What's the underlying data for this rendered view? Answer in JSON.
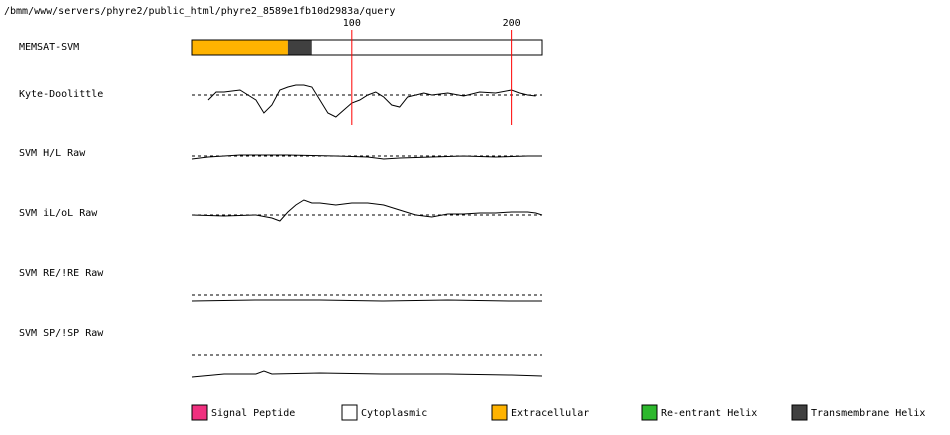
{
  "path": "/bmm/www/servers/phyre2/public_html/phyre2_8589e1fb10d2983a/query",
  "chart_data": {
    "type": "track",
    "xlim": [
      0,
      219
    ],
    "xticks": [
      100,
      200
    ],
    "tick_color": "#ff0000",
    "topology": {
      "name": "MEMSAT-SVM",
      "segments": [
        {
          "start": 0,
          "end": 60,
          "color": "#ffb300"
        },
        {
          "start": 60,
          "end": 75,
          "color": "#404040"
        },
        {
          "start": 75,
          "end": 219,
          "color": "#ffffff"
        }
      ]
    },
    "tracks": [
      {
        "name": "Kyte-Doolittle",
        "ylim": [
          -30,
          30
        ],
        "x": [
          10,
          15,
          20,
          30,
          40,
          45,
          50,
          55,
          60,
          65,
          70,
          75,
          80,
          85,
          90,
          95,
          100,
          105,
          110,
          115,
          120,
          125,
          130,
          135,
          140,
          145,
          150,
          160,
          170,
          180,
          190,
          200,
          205,
          210,
          215
        ],
        "values": [
          -5,
          3,
          3,
          5,
          -5,
          -18,
          -10,
          5,
          8,
          10,
          10,
          8,
          -5,
          -18,
          -22,
          -15,
          -8,
          -5,
          0,
          3,
          -2,
          -10,
          -12,
          -2,
          0,
          2,
          0,
          2,
          -1,
          3,
          2,
          5,
          2,
          0,
          -1
        ]
      },
      {
        "name": "SVM H/L Raw",
        "ylim": [
          -30,
          30
        ],
        "x": [
          0,
          10,
          30,
          60,
          90,
          110,
          120,
          130,
          150,
          170,
          190,
          210,
          219
        ],
        "values": [
          -3,
          -1,
          1,
          1,
          0,
          -1,
          -3,
          -2,
          -1,
          0,
          -1,
          0,
          0
        ]
      },
      {
        "name": "SVM iL/oL Raw",
        "ylim": [
          -30,
          30
        ],
        "x": [
          0,
          20,
          40,
          50,
          55,
          60,
          65,
          70,
          75,
          80,
          90,
          100,
          110,
          120,
          130,
          140,
          150,
          160,
          170,
          180,
          190,
          200,
          210,
          215,
          219
        ],
        "values": [
          0,
          -1,
          0,
          -3,
          -6,
          3,
          10,
          15,
          12,
          12,
          10,
          12,
          12,
          10,
          5,
          0,
          -2,
          1,
          1,
          2,
          2,
          3,
          3,
          2,
          0
        ]
      },
      {
        "name": "SVM RE/!RE Raw",
        "ylim": [
          -30,
          30
        ],
        "x": [
          0,
          40,
          80,
          120,
          160,
          200,
          219
        ],
        "values": [
          -6,
          -5,
          -5,
          -6,
          -5,
          -6,
          -6
        ]
      },
      {
        "name": "SVM SP/!SP Raw",
        "ylim": [
          -30,
          30
        ],
        "x": [
          0,
          20,
          40,
          45,
          50,
          80,
          120,
          160,
          200,
          219
        ],
        "values": [
          -22,
          -19,
          -19,
          -16,
          -19,
          -18,
          -19,
          -19,
          -20,
          -21
        ]
      }
    ],
    "legend": [
      {
        "name": "Signal Peptide",
        "color": "#f0307f"
      },
      {
        "name": "Cytoplasmic",
        "color": "#ffffff"
      },
      {
        "name": "Extracellular",
        "color": "#ffb300"
      },
      {
        "name": "Re-entrant Helix",
        "color": "#2db82d"
      },
      {
        "name": "Transmembrane Helix",
        "color": "#404040"
      }
    ]
  }
}
